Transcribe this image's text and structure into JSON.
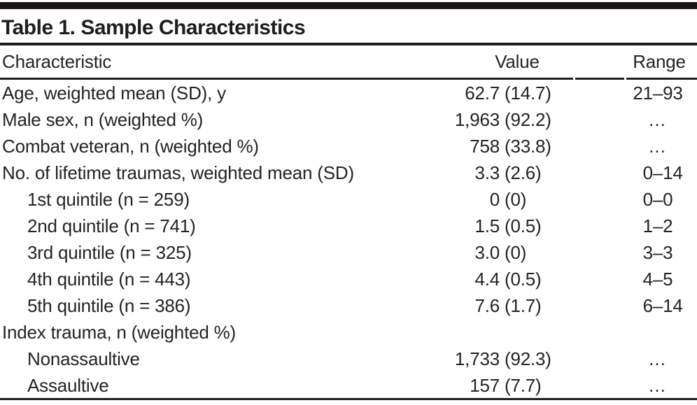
{
  "table": {
    "title": "Table 1. Sample Characteristics",
    "columns": [
      "Characteristic",
      "Value",
      "Range"
    ],
    "rows": [
      {
        "label": "Age, weighted mean (SD), y",
        "indent": false,
        "value": {
          "num": "62.7",
          "sd": "(14.7)"
        },
        "range": {
          "lo": "21",
          "sep": "–",
          "hi": "93"
        }
      },
      {
        "label": "Male sex, n (weighted %)",
        "indent": false,
        "value": {
          "num": "1,963",
          "sd": "(92.2)"
        },
        "range": {
          "ellipsis": "…"
        }
      },
      {
        "label": "Combat veteran, n (weighted %)",
        "indent": false,
        "value": {
          "num": "758",
          "sd": "(33.8)"
        },
        "range": {
          "ellipsis": "…"
        }
      },
      {
        "label": "No. of lifetime traumas, weighted mean (SD)",
        "indent": false,
        "value": {
          "num": "3.3",
          "sd": "(2.6)"
        },
        "range": {
          "lo": "0",
          "sep": "–",
          "hi": "14"
        }
      },
      {
        "label": "1st quintile (n = 259)",
        "indent": true,
        "value": {
          "num": "0",
          "sd": "(0)"
        },
        "range": {
          "lo": "0",
          "sep": "–",
          "hi": "0"
        }
      },
      {
        "label": "2nd quintile (n = 741)",
        "indent": true,
        "value": {
          "num": "1.5",
          "sd": "(0.5)"
        },
        "range": {
          "lo": "1",
          "sep": "–",
          "hi": "2"
        }
      },
      {
        "label": "3rd quintile (n = 325)",
        "indent": true,
        "value": {
          "num": "3.0",
          "sd": "(0)"
        },
        "range": {
          "lo": "3",
          "sep": "–",
          "hi": "3"
        }
      },
      {
        "label": "4th quintile (n = 443)",
        "indent": true,
        "value": {
          "num": "4.4",
          "sd": "(0.5)"
        },
        "range": {
          "lo": "4",
          "sep": "–",
          "hi": "5"
        }
      },
      {
        "label": "5th quintile (n = 386)",
        "indent": true,
        "value": {
          "num": "7.6",
          "sd": "(1.7)"
        },
        "range": {
          "lo": "6",
          "sep": "–",
          "hi": "14"
        }
      },
      {
        "label": "Index trauma, n (weighted %)",
        "indent": false
      },
      {
        "label": "Nonassaultive",
        "indent": true,
        "value": {
          "num": "1,733",
          "sd": "(92.3)"
        },
        "range": {
          "ellipsis": "…"
        }
      },
      {
        "label": "Assaultive",
        "indent": true,
        "value": {
          "num": "157",
          "sd": "(7.7)"
        },
        "range": {
          "ellipsis": "…"
        }
      }
    ],
    "colors": {
      "ink": "#262223",
      "rule": "#211d1e",
      "top_bar": "#191516",
      "background": "#ffffff"
    }
  }
}
